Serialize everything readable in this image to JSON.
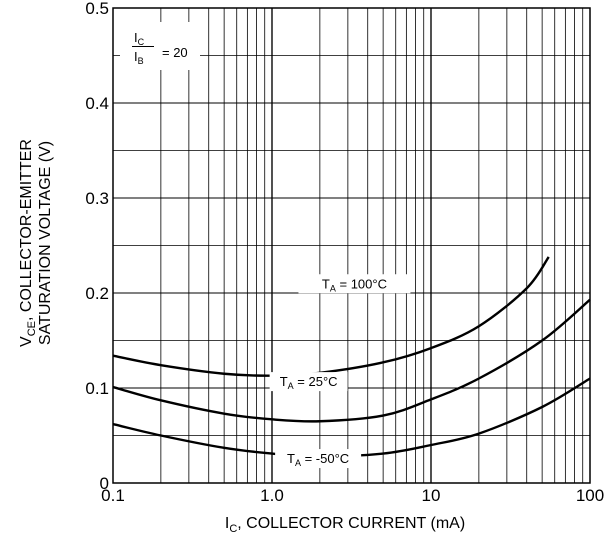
{
  "chart_data": {
    "type": "line",
    "xscale": "log",
    "xlim": [
      0.1,
      100
    ],
    "ylim": [
      0,
      0.5
    ],
    "grid": true,
    "xlabel": {
      "main": "I",
      "sub": "C",
      "rest": ", COLLECTOR CURRENT (mA)"
    },
    "ylabel": {
      "line1_main": "V",
      "line1_sub": "CE",
      "line1_rest": ", COLLECTOR-EMITTER",
      "line2": "SATURATION VOLTAGE (V)"
    },
    "x_ticks": [
      {
        "value": 0.1,
        "label": "0.1"
      },
      {
        "value": 1,
        "label": "1.0"
      },
      {
        "value": 10,
        "label": "10"
      },
      {
        "value": 100,
        "label": "100"
      }
    ],
    "y_ticks": [
      {
        "value": 0,
        "label": "0"
      },
      {
        "value": 0.1,
        "label": "0.1"
      },
      {
        "value": 0.2,
        "label": "0.2"
      },
      {
        "value": 0.3,
        "label": "0.3"
      },
      {
        "value": 0.4,
        "label": "0.4"
      },
      {
        "value": 0.5,
        "label": "0.5"
      }
    ],
    "annotation": {
      "num_main": "I",
      "num_sub": "C",
      "den_main": "I",
      "den_sub": "B",
      "value": "= 20"
    },
    "series": [
      {
        "label": {
          "main": "T",
          "sub": "A",
          "rest": " = 100°C"
        },
        "x": [
          0.1,
          0.2,
          0.5,
          1,
          2,
          5,
          10,
          20,
          40,
          55
        ],
        "y": [
          0.134,
          0.124,
          0.115,
          0.113,
          0.116,
          0.127,
          0.142,
          0.165,
          0.205,
          0.238
        ]
      },
      {
        "label": {
          "main": "T",
          "sub": "A",
          "rest": " = 25°C"
        },
        "x": [
          0.1,
          0.2,
          0.5,
          1,
          2,
          5,
          10,
          20,
          50,
          100
        ],
        "y": [
          0.101,
          0.087,
          0.073,
          0.067,
          0.065,
          0.071,
          0.088,
          0.11,
          0.15,
          0.193
        ]
      },
      {
        "label": {
          "main": "T",
          "sub": "A",
          "rest": " = -50°C"
        },
        "x": [
          0.1,
          0.2,
          0.5,
          1,
          2,
          5,
          10,
          20,
          50,
          100
        ],
        "y": [
          0.062,
          0.05,
          0.037,
          0.031,
          0.028,
          0.031,
          0.04,
          0.052,
          0.08,
          0.11
        ]
      }
    ]
  }
}
